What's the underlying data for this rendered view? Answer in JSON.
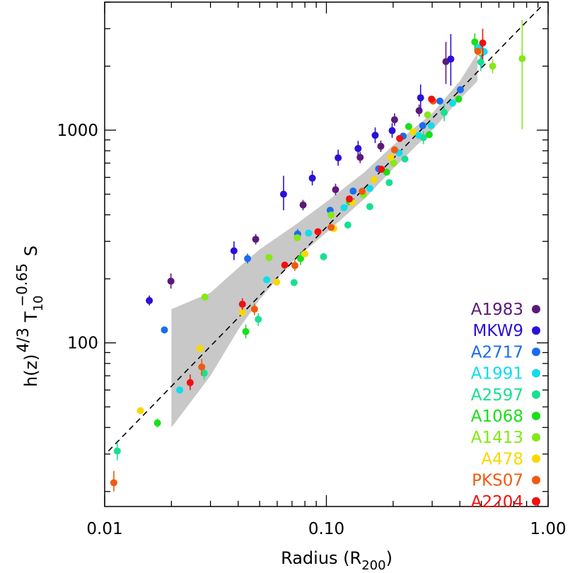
{
  "chart_data": {
    "type": "scatter",
    "title": "",
    "xlabel": "Radius (R",
    "xlabel_sub": "200",
    "xlabel_close": ")",
    "ylabel_h": "h(z)",
    "ylabel_h_sup": "4/3",
    "ylabel_t": "T",
    "ylabel_t_sub": "10",
    "ylabel_t_sup": "−0.65",
    "ylabel_s": "S",
    "x_scale": "log",
    "y_scale": "log",
    "xlim": [
      0.01,
      1.0
    ],
    "ylim": [
      17,
      4000
    ],
    "x_ticks": [
      {
        "value": 0.01,
        "label": "0.01"
      },
      {
        "value": 0.1,
        "label": "0.10"
      },
      {
        "value": 1.0,
        "label": "1.00"
      }
    ],
    "y_ticks": [
      {
        "value": 100,
        "label": "100"
      },
      {
        "value": 1000,
        "label": "1000"
      }
    ],
    "grid": false,
    "legend_position": "bottom-right",
    "fit_line": {
      "style": "dashed",
      "color": "#000000",
      "points": [
        [
          0.0104,
          31
        ],
        [
          0.95,
          3900
        ]
      ]
    },
    "scatter_band": {
      "color": "#c8c8c8",
      "upper": [
        [
          0.02,
          144
        ],
        [
          0.03,
          172
        ],
        [
          0.04,
          225
        ],
        [
          0.05,
          275
        ],
        [
          0.07,
          350
        ],
        [
          0.1,
          460
        ],
        [
          0.15,
          640
        ],
        [
          0.2,
          850
        ],
        [
          0.3,
          1200
        ],
        [
          0.4,
          1700
        ],
        [
          0.48,
          2300
        ]
      ],
      "lower": [
        [
          0.48,
          1700
        ],
        [
          0.4,
          1400
        ],
        [
          0.3,
          1000
        ],
        [
          0.2,
          660
        ],
        [
          0.15,
          480
        ],
        [
          0.1,
          330
        ],
        [
          0.07,
          240
        ],
        [
          0.05,
          160
        ],
        [
          0.04,
          115
        ],
        [
          0.03,
          70
        ],
        [
          0.02,
          40
        ]
      ]
    },
    "series": [
      {
        "name": "A1983",
        "color": "#5c1a78",
        "points": [
          {
            "x": 0.0199,
            "y": 195,
            "lo": 180,
            "hi": 212
          },
          {
            "x": 0.048,
            "y": 307,
            "lo": 290,
            "hi": 325
          },
          {
            "x": 0.0785,
            "y": 445,
            "lo": 420,
            "hi": 470
          },
          {
            "x": 0.11,
            "y": 525,
            "lo": 495,
            "hi": 560
          },
          {
            "x": 0.142,
            "y": 745,
            "lo": 700,
            "hi": 790
          },
          {
            "x": 0.176,
            "y": 840,
            "lo": 790,
            "hi": 895
          },
          {
            "x": 0.203,
            "y": 1120,
            "lo": 1050,
            "hi": 1200
          },
          {
            "x": 0.262,
            "y": 1235,
            "lo": 1160,
            "hi": 1320
          },
          {
            "x": 0.346,
            "y": 2100,
            "lo": 1650,
            "hi": 2600
          }
        ]
      },
      {
        "name": "MKW9",
        "color": "#2a10d8",
        "points": [
          {
            "x": 0.0159,
            "y": 158,
            "lo": 150,
            "hi": 167
          },
          {
            "x": 0.0383,
            "y": 271,
            "lo": 245,
            "hi": 300
          },
          {
            "x": 0.0641,
            "y": 500,
            "lo": 420,
            "hi": 610
          },
          {
            "x": 0.0864,
            "y": 595,
            "lo": 550,
            "hi": 645
          },
          {
            "x": 0.113,
            "y": 741,
            "lo": 680,
            "hi": 810
          },
          {
            "x": 0.139,
            "y": 820,
            "lo": 760,
            "hi": 890
          },
          {
            "x": 0.166,
            "y": 946,
            "lo": 870,
            "hi": 1030
          },
          {
            "x": 0.198,
            "y": 995,
            "lo": 920,
            "hi": 1080
          },
          {
            "x": 0.266,
            "y": 1420,
            "lo": 1230,
            "hi": 1640
          },
          {
            "x": 0.364,
            "y": 2160,
            "lo": 1620,
            "hi": 2830
          }
        ]
      },
      {
        "name": "A2717",
        "color": "#1a6cf0",
        "points": [
          {
            "x": 0.0186,
            "y": 115
          },
          {
            "x": 0.0441,
            "y": 249,
            "lo": 236,
            "hi": 263
          },
          {
            "x": 0.0742,
            "y": 325,
            "lo": 308,
            "hi": 343
          },
          {
            "x": 0.104,
            "y": 420
          },
          {
            "x": 0.132,
            "y": 517
          },
          {
            "x": 0.172,
            "y": 658
          },
          {
            "x": 0.222,
            "y": 938
          },
          {
            "x": 0.272,
            "y": 1050
          },
          {
            "x": 0.325,
            "y": 1370
          },
          {
            "x": 0.402,
            "y": 1550
          },
          {
            "x": 0.5,
            "y": 2300,
            "lo": 1960,
            "hi": 2650
          }
        ]
      },
      {
        "name": "A1991",
        "color": "#10dcec",
        "points": [
          {
            "x": 0.0218,
            "y": 60
          },
          {
            "x": 0.0538,
            "y": 198
          },
          {
            "x": 0.0831,
            "y": 328
          },
          {
            "x": 0.12,
            "y": 432
          },
          {
            "x": 0.157,
            "y": 532
          },
          {
            "x": 0.213,
            "y": 782
          },
          {
            "x": 0.261,
            "y": 945
          },
          {
            "x": 0.297,
            "y": 1050
          },
          {
            "x": 0.371,
            "y": 1340
          },
          {
            "x": 0.482,
            "y": 2450
          },
          {
            "x": 0.515,
            "y": 2340
          }
        ]
      },
      {
        "name": "A2597",
        "color": "#18e090",
        "points": [
          {
            "x": 0.0114,
            "y": 31,
            "lo": 28,
            "hi": 34
          },
          {
            "x": 0.0281,
            "y": 72,
            "lo": 67,
            "hi": 77
          },
          {
            "x": 0.0493,
            "y": 129,
            "lo": 120,
            "hi": 138
          },
          {
            "x": 0.0715,
            "y": 192
          },
          {
            "x": 0.0971,
            "y": 254
          },
          {
            "x": 0.125,
            "y": 358
          },
          {
            "x": 0.157,
            "y": 437
          },
          {
            "x": 0.192,
            "y": 567
          },
          {
            "x": 0.226,
            "y": 732
          },
          {
            "x": 0.274,
            "y": 922,
            "lo": 860,
            "hi": 990
          },
          {
            "x": 0.34,
            "y": 1210,
            "lo": 1100,
            "hi": 1330
          },
          {
            "x": 0.497,
            "y": 2090,
            "lo": 1900,
            "hi": 2300
          }
        ]
      },
      {
        "name": "A1068",
        "color": "#18e018",
        "points": [
          {
            "x": 0.0173,
            "y": 42,
            "lo": 40,
            "hi": 44
          },
          {
            "x": 0.0433,
            "y": 113,
            "lo": 105,
            "hi": 122
          },
          {
            "x": 0.0765,
            "y": 249,
            "lo": 232,
            "hi": 268
          },
          {
            "x": 0.127,
            "y": 461
          },
          {
            "x": 0.187,
            "y": 635
          },
          {
            "x": 0.235,
            "y": 1040
          },
          {
            "x": 0.291,
            "y": 953
          },
          {
            "x": 0.395,
            "y": 1400
          },
          {
            "x": 0.467,
            "y": 2600,
            "lo": 2350,
            "hi": 2850
          }
        ]
      },
      {
        "name": "A1413",
        "color": "#84e818",
        "points": [
          {
            "x": 0.0283,
            "y": 164
          },
          {
            "x": 0.0551,
            "y": 252
          },
          {
            "x": 0.0739,
            "y": 312
          },
          {
            "x": 0.105,
            "y": 399
          },
          {
            "x": 0.147,
            "y": 497
          },
          {
            "x": 0.201,
            "y": 700
          },
          {
            "x": 0.286,
            "y": 1180
          },
          {
            "x": 0.562,
            "y": 2000,
            "lo": 1850,
            "hi": 2160
          },
          {
            "x": 0.764,
            "y": 2170,
            "lo": 1010,
            "hi": 3300
          }
        ]
      },
      {
        "name": "A478",
        "color": "#f8d800",
        "points": [
          {
            "x": 0.0145,
            "y": 48
          },
          {
            "x": 0.0269,
            "y": 94
          },
          {
            "x": 0.0418,
            "y": 139
          },
          {
            "x": 0.0597,
            "y": 193
          },
          {
            "x": 0.08,
            "y": 262
          },
          {
            "x": 0.108,
            "y": 345
          },
          {
            "x": 0.131,
            "y": 458
          },
          {
            "x": 0.164,
            "y": 585
          },
          {
            "x": 0.195,
            "y": 745
          },
          {
            "x": 0.246,
            "y": 982
          },
          {
            "x": 0.488,
            "y": 2330
          }
        ]
      },
      {
        "name": "PKS07",
        "color": "#f05a10",
        "points": [
          {
            "x": 0.011,
            "y": 22,
            "lo": 20,
            "hi": 25
          },
          {
            "x": 0.0274,
            "y": 77,
            "lo": 70,
            "hi": 84
          },
          {
            "x": 0.0474,
            "y": 144,
            "lo": 135,
            "hi": 153
          },
          {
            "x": 0.0721,
            "y": 231,
            "lo": 218,
            "hi": 245
          },
          {
            "x": 0.105,
            "y": 349
          },
          {
            "x": 0.145,
            "y": 516
          },
          {
            "x": 0.203,
            "y": 808
          },
          {
            "x": 0.303,
            "y": 1370
          },
          {
            "x": 0.482,
            "y": 2350
          }
        ]
      },
      {
        "name": "A2204",
        "color": "#f01010",
        "points": [
          {
            "x": 0.0243,
            "y": 65,
            "lo": 60,
            "hi": 71
          },
          {
            "x": 0.0418,
            "y": 152,
            "lo": 143,
            "hi": 162
          },
          {
            "x": 0.0649,
            "y": 232
          },
          {
            "x": 0.0916,
            "y": 333
          },
          {
            "x": 0.127,
            "y": 475
          },
          {
            "x": 0.177,
            "y": 655
          },
          {
            "x": 0.214,
            "y": 914
          },
          {
            "x": 0.298,
            "y": 1400
          },
          {
            "x": 0.507,
            "y": 2570,
            "lo": 2150,
            "hi": 3000
          }
        ]
      }
    ]
  }
}
